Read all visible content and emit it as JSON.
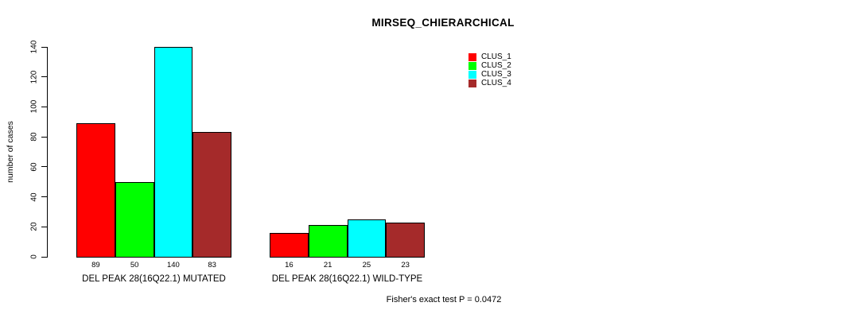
{
  "chart_data": {
    "type": "bar",
    "title": "MIRSEQ_CHIERARCHICAL",
    "ylabel": "number of cases",
    "xlabel": "",
    "ylim": [
      0,
      140
    ],
    "yticks": [
      0,
      20,
      40,
      60,
      80,
      100,
      120,
      140
    ],
    "grid": false,
    "legend_position": "top-right",
    "bar_value_labels_shown": true,
    "categories": [
      "DEL PEAK 28(16Q22.1) MUTATED",
      "DEL PEAK 28(16Q22.1) WILD-TYPE"
    ],
    "series": [
      {
        "name": "CLUS_1",
        "color": "#FF0000",
        "values": [
          89,
          16
        ]
      },
      {
        "name": "CLUS_2",
        "color": "#00FF00",
        "values": [
          50,
          21
        ]
      },
      {
        "name": "CLUS_3",
        "color": "#00FFFF",
        "values": [
          140,
          25
        ]
      },
      {
        "name": "CLUS_4",
        "color": "#A52A2A",
        "values": [
          83,
          23
        ]
      }
    ],
    "annotation": "Fisher's exact test P = 0.0472"
  }
}
